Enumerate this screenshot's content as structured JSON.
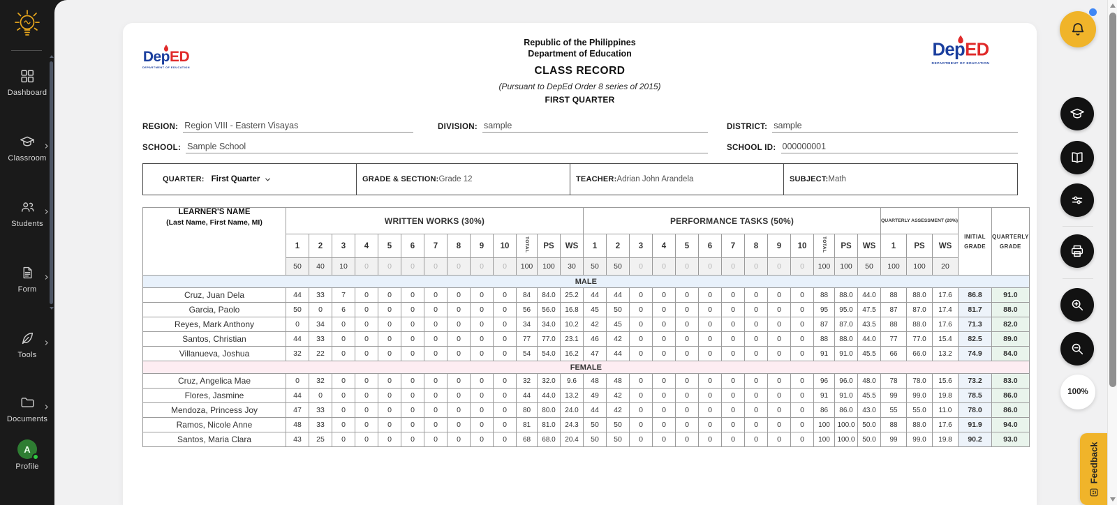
{
  "sidebar": {
    "items": [
      {
        "label": "Dashboard",
        "icon": "dashboard-grid",
        "has_submenu": false
      },
      {
        "label": "Classroom",
        "icon": "graduation-cap",
        "has_submenu": true
      },
      {
        "label": "Students",
        "icon": "people",
        "has_submenu": true
      },
      {
        "label": "Form",
        "icon": "document",
        "has_submenu": true
      },
      {
        "label": "Tools",
        "icon": "quill",
        "has_submenu": true
      },
      {
        "label": "Documents",
        "icon": "folder",
        "has_submenu": true
      }
    ],
    "profile": {
      "label": "Profile",
      "avatar_initial": "A"
    }
  },
  "toolbar": {
    "buttons": [
      "notifications-bell",
      "classroom",
      "book",
      "settings-sliders",
      "print",
      "zoom-in",
      "zoom-out"
    ],
    "zoom_level": "100%",
    "feedback_label": "Feedback"
  },
  "record": {
    "title_lines": [
      "Republic of the Philippines",
      "Department of Education"
    ],
    "title": "CLASS RECORD",
    "subtitle": "(Pursuant to DepEd Order 8 series of 2015)",
    "quarter_title": "FIRST QUARTER",
    "logo": {
      "text_blue": "Dep",
      "text_red": "ED",
      "caption": "DEPARTMENT OF EDUCATION"
    },
    "fields": {
      "region_label": "REGION:",
      "region": "Region VIII - Eastern Visayas",
      "division_label": "DIVISION:",
      "division": "sample",
      "district_label": "DISTRICT:",
      "district": "sample",
      "school_label": "SCHOOL:",
      "school": "Sample School",
      "school_id_label": "SCHOOL ID:",
      "school_id": "000000001"
    },
    "info_bar": {
      "quarter_label": "QUARTER:",
      "quarter_value": "First Quarter",
      "grade_section_label": "GRADE & SECTION:",
      "grade_section": "Grade 12",
      "teacher_label": "TEACHER:",
      "teacher": "Adrian John Arandela",
      "subject_label": "SUBJECT:",
      "subject": "Math"
    }
  },
  "table": {
    "name_header_line1": "LEARNER'S NAME",
    "name_header_line2": "(Last Name, First Name, MI)",
    "sections": [
      {
        "label": "WRITTEN WORKS (30%)"
      },
      {
        "label": "PERFORMANCE TASKS (50%)"
      },
      {
        "label": "QUARTERLY ASSESSMENT (20%)"
      }
    ],
    "initial_grade_header": [
      "INITIAL",
      "GRADE"
    ],
    "quarterly_grade_header": [
      "QUARTERLY",
      "GRADE"
    ],
    "score_numbers": [
      "1",
      "2",
      "3",
      "4",
      "5",
      "6",
      "7",
      "8",
      "9",
      "10"
    ],
    "total_label": "TOTAL",
    "ps_label": "PS",
    "ws_label": "WS",
    "qa_item_label": "1",
    "max_scores": {
      "ww": [
        "50",
        "40",
        "10",
        "0",
        "0",
        "0",
        "0",
        "0",
        "0",
        "0",
        "100",
        "100",
        "30"
      ],
      "pt": [
        "50",
        "50",
        "0",
        "0",
        "0",
        "0",
        "0",
        "0",
        "0",
        "0",
        "100",
        "100",
        "50"
      ],
      "qa": [
        "100",
        "100",
        "20"
      ]
    },
    "groups": [
      {
        "label": "MALE",
        "students": [
          {
            "name": "Cruz, Juan Dela",
            "ww": [
              "44",
              "33",
              "7",
              "0",
              "0",
              "0",
              "0",
              "0",
              "0",
              "0",
              "84",
              "84.0",
              "25.2"
            ],
            "pt": [
              "44",
              "44",
              "0",
              "0",
              "0",
              "0",
              "0",
              "0",
              "0",
              "0",
              "88",
              "88.0",
              "44.0"
            ],
            "qa": [
              "88",
              "88.0",
              "17.6"
            ],
            "initial": "86.8",
            "quarterly": "91.0"
          },
          {
            "name": "Garcia, Paolo",
            "ww": [
              "50",
              "0",
              "6",
              "0",
              "0",
              "0",
              "0",
              "0",
              "0",
              "0",
              "56",
              "56.0",
              "16.8"
            ],
            "pt": [
              "45",
              "50",
              "0",
              "0",
              "0",
              "0",
              "0",
              "0",
              "0",
              "0",
              "95",
              "95.0",
              "47.5"
            ],
            "qa": [
              "87",
              "87.0",
              "17.4"
            ],
            "initial": "81.7",
            "quarterly": "88.0"
          },
          {
            "name": "Reyes, Mark Anthony",
            "ww": [
              "0",
              "34",
              "0",
              "0",
              "0",
              "0",
              "0",
              "0",
              "0",
              "0",
              "34",
              "34.0",
              "10.2"
            ],
            "pt": [
              "42",
              "45",
              "0",
              "0",
              "0",
              "0",
              "0",
              "0",
              "0",
              "0",
              "87",
              "87.0",
              "43.5"
            ],
            "qa": [
              "88",
              "88.0",
              "17.6"
            ],
            "initial": "71.3",
            "quarterly": "82.0"
          },
          {
            "name": "Santos, Christian",
            "ww": [
              "44",
              "33",
              "0",
              "0",
              "0",
              "0",
              "0",
              "0",
              "0",
              "0",
              "77",
              "77.0",
              "23.1"
            ],
            "pt": [
              "46",
              "42",
              "0",
              "0",
              "0",
              "0",
              "0",
              "0",
              "0",
              "0",
              "88",
              "88.0",
              "44.0"
            ],
            "qa": [
              "77",
              "77.0",
              "15.4"
            ],
            "initial": "82.5",
            "quarterly": "89.0"
          },
          {
            "name": "Villanueva, Joshua",
            "ww": [
              "32",
              "22",
              "0",
              "0",
              "0",
              "0",
              "0",
              "0",
              "0",
              "0",
              "54",
              "54.0",
              "16.2"
            ],
            "pt": [
              "47",
              "44",
              "0",
              "0",
              "0",
              "0",
              "0",
              "0",
              "0",
              "0",
              "91",
              "91.0",
              "45.5"
            ],
            "qa": [
              "66",
              "66.0",
              "13.2"
            ],
            "initial": "74.9",
            "quarterly": "84.0"
          }
        ]
      },
      {
        "label": "FEMALE",
        "students": [
          {
            "name": "Cruz, Angelica Mae",
            "ww": [
              "0",
              "32",
              "0",
              "0",
              "0",
              "0",
              "0",
              "0",
              "0",
              "0",
              "32",
              "32.0",
              "9.6"
            ],
            "pt": [
              "48",
              "48",
              "0",
              "0",
              "0",
              "0",
              "0",
              "0",
              "0",
              "0",
              "96",
              "96.0",
              "48.0"
            ],
            "qa": [
              "78",
              "78.0",
              "15.6"
            ],
            "initial": "73.2",
            "quarterly": "83.0"
          },
          {
            "name": "Flores, Jasmine",
            "ww": [
              "44",
              "0",
              "0",
              "0",
              "0",
              "0",
              "0",
              "0",
              "0",
              "0",
              "44",
              "44.0",
              "13.2"
            ],
            "pt": [
              "49",
              "42",
              "0",
              "0",
              "0",
              "0",
              "0",
              "0",
              "0",
              "0",
              "91",
              "91.0",
              "45.5"
            ],
            "qa": [
              "99",
              "99.0",
              "19.8"
            ],
            "initial": "78.5",
            "quarterly": "86.0"
          },
          {
            "name": "Mendoza, Princess Joy",
            "ww": [
              "47",
              "33",
              "0",
              "0",
              "0",
              "0",
              "0",
              "0",
              "0",
              "0",
              "80",
              "80.0",
              "24.0"
            ],
            "pt": [
              "44",
              "42",
              "0",
              "0",
              "0",
              "0",
              "0",
              "0",
              "0",
              "0",
              "86",
              "86.0",
              "43.0"
            ],
            "qa": [
              "55",
              "55.0",
              "11.0"
            ],
            "initial": "78.0",
            "quarterly": "86.0"
          },
          {
            "name": "Ramos, Nicole Anne",
            "ww": [
              "48",
              "33",
              "0",
              "0",
              "0",
              "0",
              "0",
              "0",
              "0",
              "0",
              "81",
              "81.0",
              "24.3"
            ],
            "pt": [
              "50",
              "50",
              "0",
              "0",
              "0",
              "0",
              "0",
              "0",
              "0",
              "0",
              "100",
              "100.0",
              "50.0"
            ],
            "qa": [
              "88",
              "88.0",
              "17.6"
            ],
            "initial": "91.9",
            "quarterly": "94.0"
          },
          {
            "name": "Santos, Maria Clara",
            "ww": [
              "43",
              "25",
              "0",
              "0",
              "0",
              "0",
              "0",
              "0",
              "0",
              "0",
              "68",
              "68.0",
              "20.4"
            ],
            "pt": [
              "50",
              "50",
              "0",
              "0",
              "0",
              "0",
              "0",
              "0",
              "0",
              "0",
              "100",
              "100.0",
              "50.0"
            ],
            "qa": [
              "99",
              "99.0",
              "19.8"
            ],
            "initial": "90.2",
            "quarterly": "93.0"
          }
        ]
      }
    ]
  },
  "colors": {
    "accent_yellow": "#F0B42A",
    "sidebar_bg": "#1A1A1A",
    "male_band": "#E8F1FB",
    "female_band": "#FDEDF2",
    "initial_grade_col": "#EDF3FA",
    "quarterly_grade_col": "#E9F4EC",
    "notification_dot": "#3F87F5",
    "profile_avatar_green": "#2E7D32",
    "online_dot_green": "#2ECC40",
    "deped_blue": "#1B3F9E",
    "deped_red": "#E02A2A"
  }
}
